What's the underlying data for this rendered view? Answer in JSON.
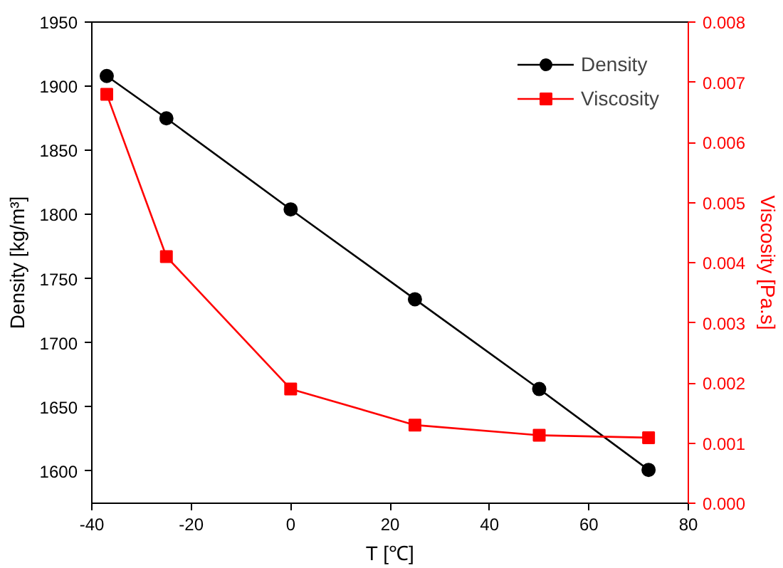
{
  "chart_data": {
    "type": "line",
    "xlabel": "T [℃]",
    "ylabel": "Density [kg/m³]",
    "y2label": "Viscosity [Pa.s]",
    "x": [
      -37,
      -25,
      0,
      25,
      50,
      72
    ],
    "series": [
      {
        "name": "Density",
        "color": "#000000",
        "marker": "circle",
        "values": [
          1908,
          1875,
          1804,
          1734,
          1664,
          1601
        ]
      },
      {
        "name": "Viscosity",
        "color": "#ff0000",
        "marker": "square",
        "axis": "y2",
        "values": [
          0.0068,
          0.0041,
          0.0019,
          0.0013,
          0.00113,
          0.00109
        ]
      }
    ],
    "xlim": [
      -40,
      80
    ],
    "xticks": [
      -40,
      -20,
      0,
      20,
      40,
      60,
      80
    ],
    "ylim": [
      1575,
      1950
    ],
    "yticks": [
      1600,
      1650,
      1700,
      1750,
      1800,
      1850,
      1900,
      1950
    ],
    "y2lim": [
      0,
      0.008
    ],
    "y2ticks": [
      {
        "value": 0,
        "label": "0.000"
      },
      {
        "value": 0.001,
        "label": "0.001"
      },
      {
        "value": 0.002,
        "label": "0.002"
      },
      {
        "value": 0.003,
        "label": "0.003"
      },
      {
        "value": 0.004,
        "label": "0.004"
      },
      {
        "value": 0.005,
        "label": "0.005"
      },
      {
        "value": 0.006,
        "label": "0.006"
      },
      {
        "value": 0.007,
        "label": "0.007"
      },
      {
        "value": 0.008,
        "label": "0.008"
      }
    ],
    "grid": false,
    "legend": "top right"
  }
}
